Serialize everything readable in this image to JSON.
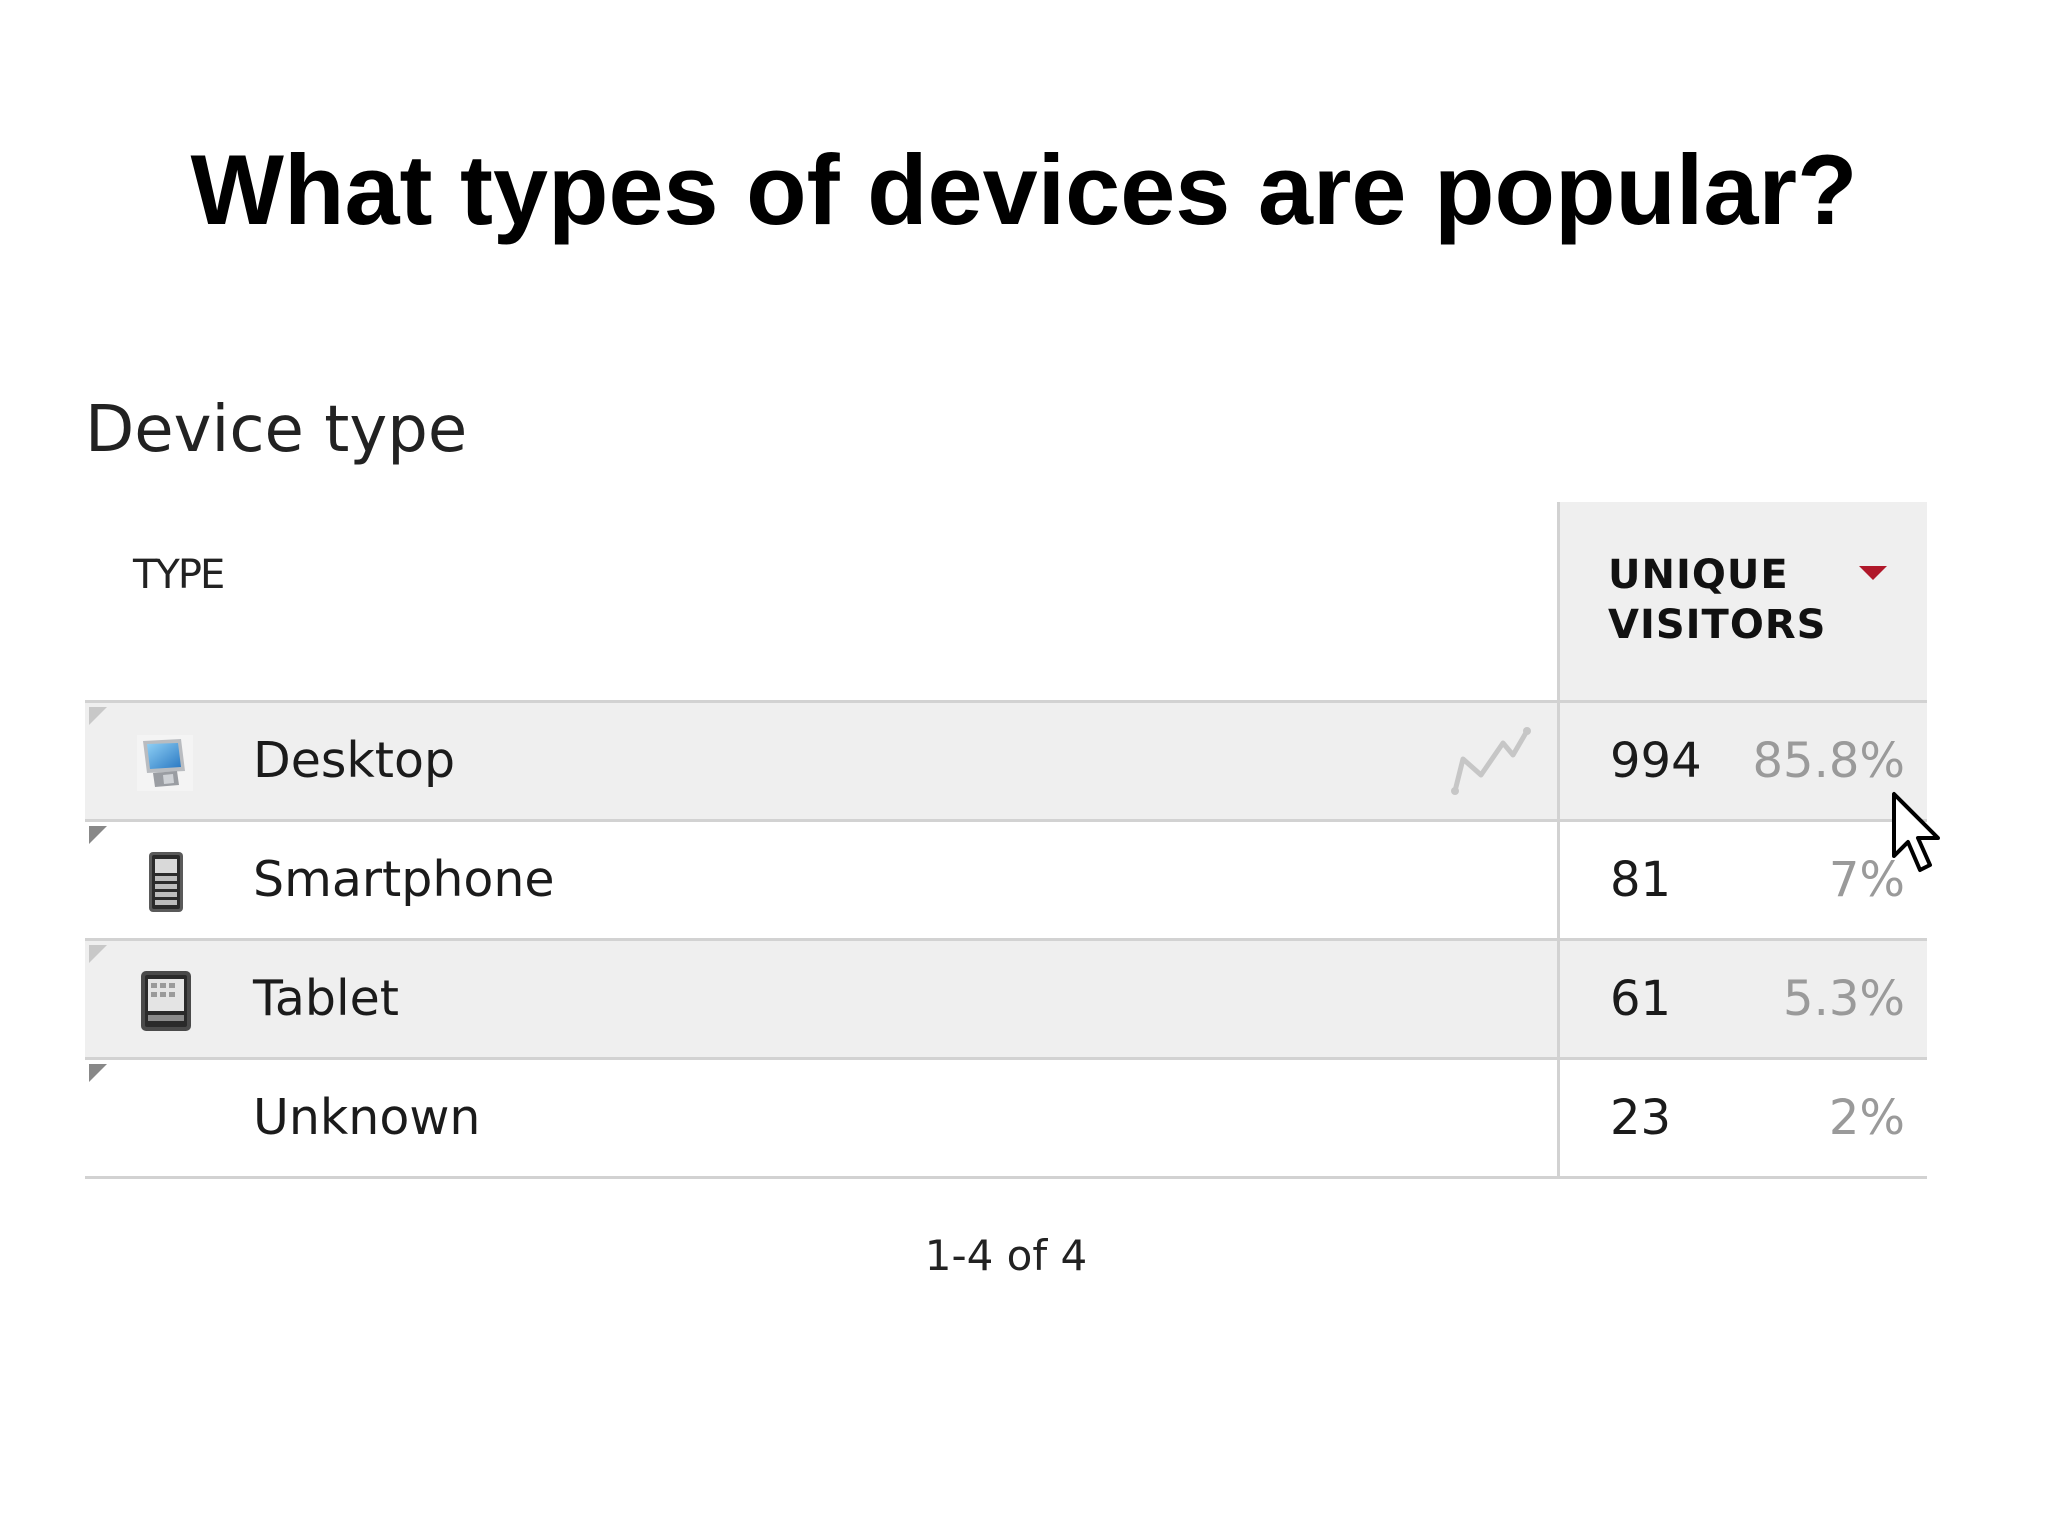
{
  "slide": {
    "title": "What types of devices are popular?"
  },
  "widget": {
    "title": "Device type",
    "columns": {
      "type": "TYPE",
      "visitors": "UNIQUE VISITORS"
    },
    "sort": {
      "column": "visitors",
      "direction": "descending",
      "arrow_color": "#b0182a"
    },
    "rows": [
      {
        "label": "Desktop",
        "count": "994",
        "percent": "85.8%",
        "icon": "desktop-icon"
      },
      {
        "label": "Smartphone",
        "count": "81",
        "percent": "7%",
        "icon": "smartphone-icon"
      },
      {
        "label": "Tablet",
        "count": "61",
        "percent": "5.3%",
        "icon": "tablet-icon"
      },
      {
        "label": "Unknown",
        "count": "23",
        "percent": "2%",
        "icon": ""
      }
    ],
    "pagination": "1-4 of 4"
  },
  "colors": {
    "row_shade": "#efefef",
    "percent_text": "#9a9a9a",
    "border": "#d2d2d2"
  }
}
